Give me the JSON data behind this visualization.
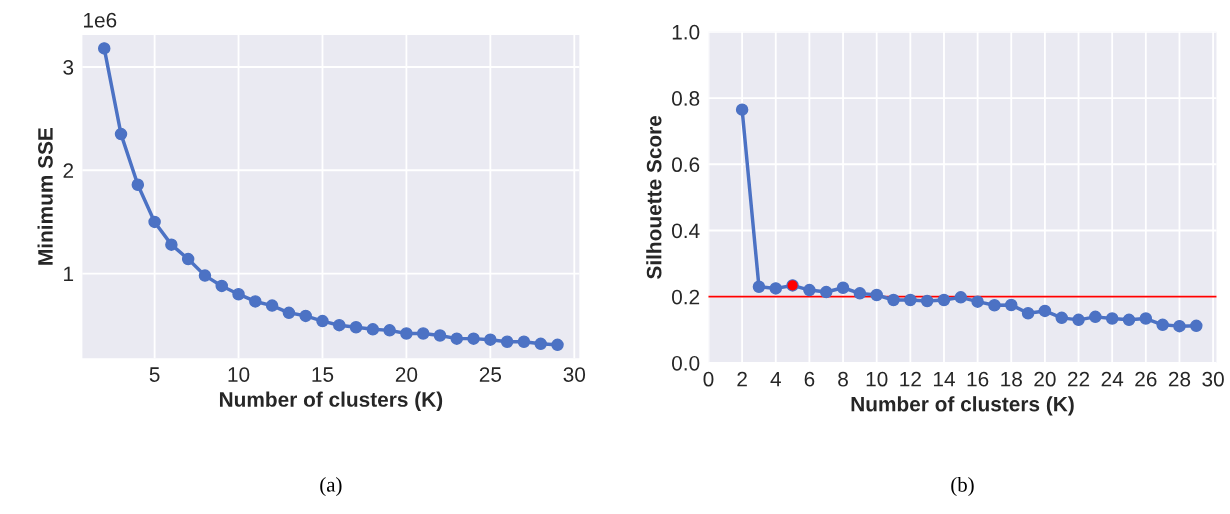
{
  "chart_data": [
    {
      "type": "line",
      "xlabel": "Number of clusters (K)",
      "ylabel": "Minimum SSE",
      "annotations": [
        "1e6",
        "(a)"
      ],
      "x": [
        2,
        3,
        4,
        5,
        6,
        7,
        8,
        9,
        10,
        11,
        12,
        13,
        14,
        15,
        16,
        17,
        18,
        19,
        20,
        21,
        22,
        23,
        24,
        25,
        26,
        27,
        28,
        29
      ],
      "series": [
        {
          "color": "#4c72c4",
          "values": [
            3.18,
            2.35,
            1.86,
            1.5,
            1.28,
            1.14,
            0.98,
            0.88,
            0.8,
            0.73,
            0.69,
            0.62,
            0.59,
            0.54,
            0.5,
            0.48,
            0.46,
            0.45,
            0.42,
            0.42,
            0.4,
            0.37,
            0.37,
            0.36,
            0.34,
            0.34,
            0.32,
            0.31
          ]
        }
      ],
      "xlim": [
        0.7,
        30.3
      ],
      "ylim": [
        0.18,
        3.31
      ],
      "xticks": [
        5,
        10,
        15,
        20,
        25,
        30
      ],
      "yticks": [
        1,
        2,
        3
      ],
      "grid": true,
      "marker": "circle",
      "line_style": "solid"
    },
    {
      "type": "line",
      "xlabel": "Number of clusters (K)",
      "ylabel": "Silhouette Score",
      "annotations": [
        "(b)"
      ],
      "x": [
        2,
        3,
        4,
        5,
        6,
        7,
        8,
        9,
        10,
        11,
        12,
        13,
        14,
        15,
        16,
        17,
        18,
        19,
        20,
        21,
        22,
        23,
        24,
        25,
        26,
        27,
        28,
        29
      ],
      "series": [
        {
          "color": "#4c72c4",
          "values": [
            0.765,
            0.23,
            0.225,
            0.234,
            0.22,
            0.214,
            0.227,
            0.21,
            0.205,
            0.19,
            0.19,
            0.187,
            0.19,
            0.198,
            0.185,
            0.174,
            0.175,
            0.15,
            0.157,
            0.136,
            0.13,
            0.139,
            0.134,
            0.13,
            0.134,
            0.115,
            0.111,
            0.112
          ]
        },
        {
          "type": "scatter",
          "color": "#ff0000",
          "x": [
            5
          ],
          "values": [
            0.234
          ]
        }
      ],
      "ref_lines": [
        {
          "axis": "y",
          "value": 0.2,
          "color": "#ff0000",
          "line_style": "solid"
        }
      ],
      "xlim": [
        0,
        30.2
      ],
      "ylim": [
        0,
        1.0
      ],
      "xticks": [
        0,
        2,
        4,
        6,
        8,
        10,
        12,
        14,
        16,
        18,
        20,
        22,
        24,
        26,
        28,
        30
      ],
      "yticks": [
        {
          "value": 0,
          "label": "0.0"
        },
        0.2,
        0.4,
        0.6,
        0.8,
        {
          "value": 1,
          "label": "1.0"
        }
      ],
      "grid": true,
      "marker": "circle",
      "line_style": "solid"
    }
  ]
}
